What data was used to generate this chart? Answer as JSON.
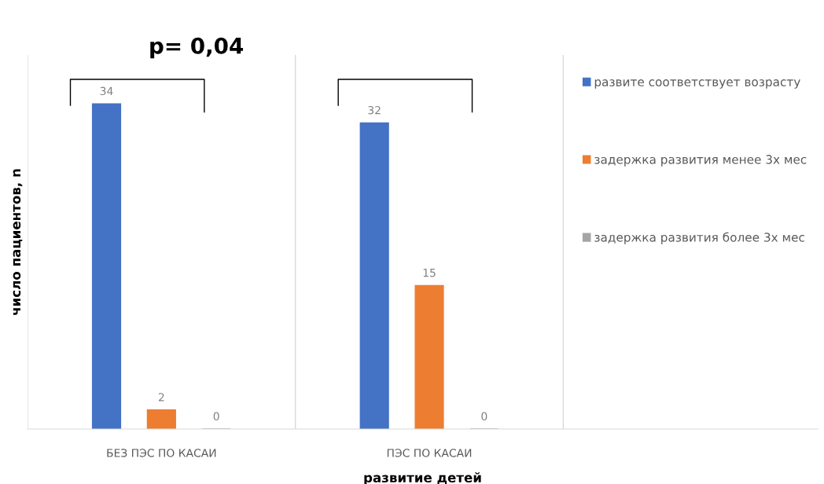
{
  "chart_data": {
    "type": "bar",
    "xlabel": "развитие детей",
    "ylabel": "число пациентов, n",
    "categories": [
      "БЕЗ ПЭС ПО КАСАИ",
      "ПЭС ПО КАСАИ"
    ],
    "series": [
      {
        "name": "развите соответствует возрасту",
        "color": "#4472c4",
        "values": [
          34,
          32
        ]
      },
      {
        "name": "задержка развития менее 3х мес",
        "color": "#ed7d31",
        "values": [
          2,
          15
        ]
      },
      {
        "name": "задержка развития более 3х мес",
        "color": "#a5a5a5",
        "values": [
          0,
          0
        ]
      }
    ],
    "data_labels": true,
    "grid": "x",
    "legend": "right",
    "tick_labels": "x",
    "annotations": [
      "p= 0,04"
    ]
  }
}
